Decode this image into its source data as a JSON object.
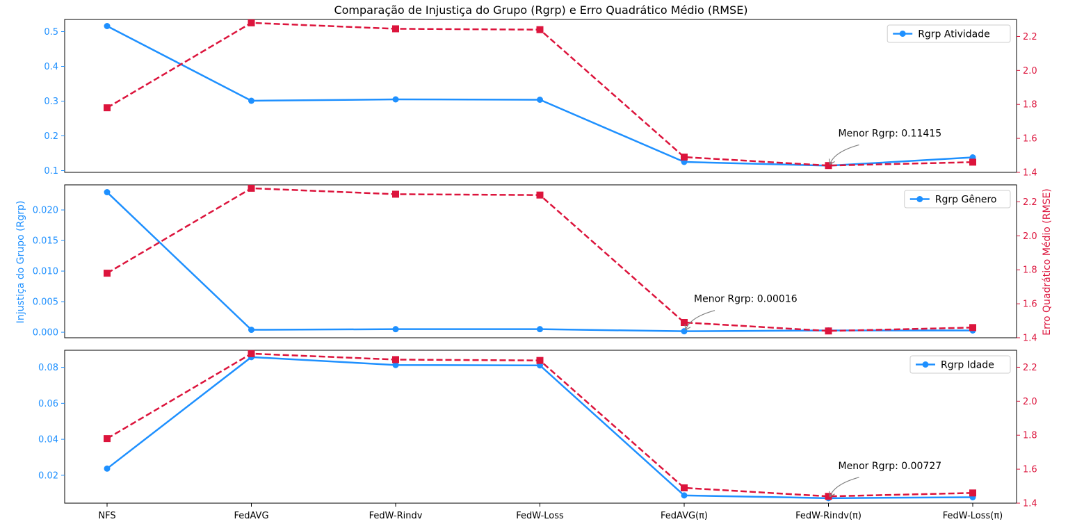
{
  "chart_data": {
    "type": "line",
    "title": "Comparação de Injustiça do Grupo (Rgrp) e Erro Quadrático Médio (RMSE)",
    "ylabel_left": "Injustiça do Grupo (Rgrp)",
    "ylabel_right": "Erro Quadrático Médio (RMSE)",
    "categories": [
      "NFS",
      "FedAVG",
      "FedW-Rindv",
      "FedW-Loss",
      "FedAVG(π)",
      "FedW-Rindv(π)",
      "FedW-Loss(π)"
    ],
    "colors": {
      "rgrp": "#1e90ff",
      "rmse": "#dc143c"
    },
    "rmse_ylim": [
      1.4,
      2.3
    ],
    "rmse_ticks": [
      "1.4",
      "1.6",
      "1.8",
      "2.0",
      "2.2"
    ],
    "panels": [
      {
        "legend": "Rgrp Atividade",
        "rgrp": [
          0.516,
          0.301,
          0.305,
          0.304,
          0.125,
          0.11415,
          0.138
        ],
        "rmse": [
          1.78,
          2.28,
          2.245,
          2.24,
          1.49,
          1.44,
          1.46
        ],
        "ylim": [
          0.095,
          0.535
        ],
        "ticks": [
          "0.1",
          "0.2",
          "0.3",
          "0.4",
          "0.5"
        ],
        "tick_values": [
          0.1,
          0.2,
          0.3,
          0.4,
          0.5
        ],
        "annotation": "Menor Rgrp: 0.11415",
        "annotation_index": 5
      },
      {
        "legend": "Rgrp Gênero",
        "rgrp": [
          0.0229,
          0.0004,
          0.0005,
          0.0005,
          0.00016,
          0.0003,
          0.0003
        ],
        "rmse": [
          1.78,
          2.28,
          2.245,
          2.24,
          1.49,
          1.44,
          1.46
        ],
        "ylim": [
          -0.0009,
          0.0241
        ],
        "ticks": [
          "0.000",
          "0.005",
          "0.010",
          "0.015",
          "0.020"
        ],
        "tick_values": [
          0.0,
          0.005,
          0.01,
          0.015,
          0.02
        ],
        "annotation": "Menor Rgrp: 0.00016",
        "annotation_index": 4
      },
      {
        "legend": "Rgrp Idade",
        "rgrp": [
          0.0237,
          0.0857,
          0.0813,
          0.0811,
          0.0088,
          0.00727,
          0.0078
        ],
        "rmse": [
          1.78,
          2.28,
          2.245,
          2.24,
          1.49,
          1.44,
          1.46
        ],
        "ylim": [
          0.0045,
          0.0895
        ],
        "ticks": [
          "0.02",
          "0.04",
          "0.06",
          "0.08"
        ],
        "tick_values": [
          0.02,
          0.04,
          0.06,
          0.08
        ],
        "annotation": "Menor Rgrp: 0.00727",
        "annotation_index": 5
      }
    ]
  }
}
